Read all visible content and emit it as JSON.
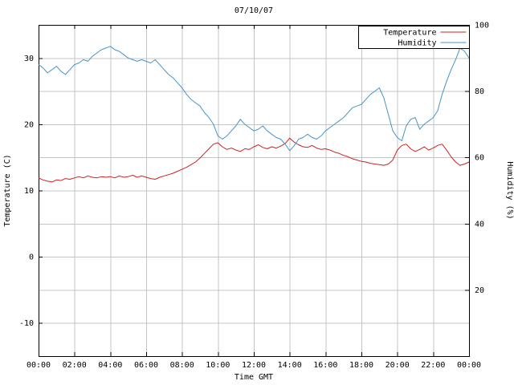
{
  "chart_data": {
    "type": "line",
    "title": "07/10/07",
    "xlabel": "Time GMT",
    "x_range_hours": [
      0,
      24
    ],
    "x_tick_hours": [
      0,
      2,
      4,
      6,
      8,
      10,
      12,
      14,
      16,
      18,
      20,
      22,
      24
    ],
    "x_tick_labels": [
      "00:00",
      "02:00",
      "04:00",
      "06:00",
      "08:00",
      "10:00",
      "12:00",
      "14:00",
      "16:00",
      "18:00",
      "20:00",
      "22:00",
      "00:00"
    ],
    "left_axis": {
      "label": "Temperature (C)",
      "range": [
        -15,
        35
      ],
      "ticks": [
        -10,
        0,
        10,
        20,
        30
      ]
    },
    "right_axis": {
      "label": "Humidity (%)",
      "range": [
        0,
        100
      ],
      "ticks": [
        20,
        40,
        60,
        80,
        100
      ]
    },
    "grid": "on",
    "legend_position": "top-right",
    "colors": {
      "grid": "#c4c4c4",
      "border": "#000000",
      "background": "#ffffff"
    },
    "x_start_hour": 0,
    "x_step_hour": 0.25,
    "series": [
      {
        "name": "Temperature",
        "axis": "left",
        "color": "#cc2222",
        "values": [
          11.9,
          11.6,
          11.4,
          11.3,
          11.6,
          11.5,
          11.8,
          11.7,
          11.9,
          12.1,
          11.9,
          12.2,
          12.0,
          11.9,
          12.1,
          12.0,
          12.1,
          11.9,
          12.2,
          12.0,
          12.1,
          12.3,
          12.0,
          12.2,
          12.0,
          11.8,
          11.7,
          12.0,
          12.2,
          12.4,
          12.6,
          12.9,
          13.2,
          13.5,
          13.9,
          14.3,
          14.9,
          15.6,
          16.3,
          17.0,
          17.2,
          16.6,
          16.2,
          16.4,
          16.1,
          15.9,
          16.3,
          16.2,
          16.6,
          16.9,
          16.5,
          16.3,
          16.6,
          16.4,
          16.7,
          17.1,
          17.9,
          17.3,
          16.9,
          16.6,
          16.5,
          16.8,
          16.4,
          16.2,
          16.3,
          16.1,
          15.8,
          15.6,
          15.3,
          15.1,
          14.8,
          14.6,
          14.4,
          14.3,
          14.1,
          14.0,
          13.9,
          13.8,
          14.0,
          14.6,
          16.1,
          16.8,
          17.0,
          16.3,
          15.9,
          16.2,
          16.6,
          16.1,
          16.4,
          16.8,
          17.0,
          16.1,
          15.1,
          14.3,
          13.8,
          14.0,
          14.3
        ]
      },
      {
        "name": "Humidity",
        "axis": "right",
        "color": "#4793c8",
        "values": [
          88,
          87,
          85.5,
          86.5,
          87.5,
          86,
          85,
          86.5,
          88,
          88.5,
          89.5,
          89,
          90.5,
          91.5,
          92.5,
          93,
          93.5,
          92.5,
          92,
          91,
          90,
          89.5,
          89,
          89.5,
          89,
          88.5,
          89.5,
          88,
          86.5,
          85,
          84,
          82.5,
          81,
          79,
          77.5,
          76.5,
          75.5,
          73.5,
          72,
          70,
          66.5,
          65.5,
          66.5,
          68,
          69.5,
          71.5,
          70,
          69,
          68,
          68.5,
          69.5,
          68,
          67,
          66,
          65.5,
          64,
          62,
          63.5,
          65.5,
          66,
          67,
          66,
          65.5,
          66.5,
          68,
          69,
          70,
          71,
          72,
          73.5,
          75,
          75.5,
          76,
          77.5,
          79,
          80,
          81,
          78,
          73,
          68,
          66,
          65,
          69.5,
          71.5,
          72,
          68.5,
          70,
          71,
          72,
          74,
          79,
          83,
          86.5,
          89.5,
          93,
          92,
          90
        ]
      }
    ]
  }
}
